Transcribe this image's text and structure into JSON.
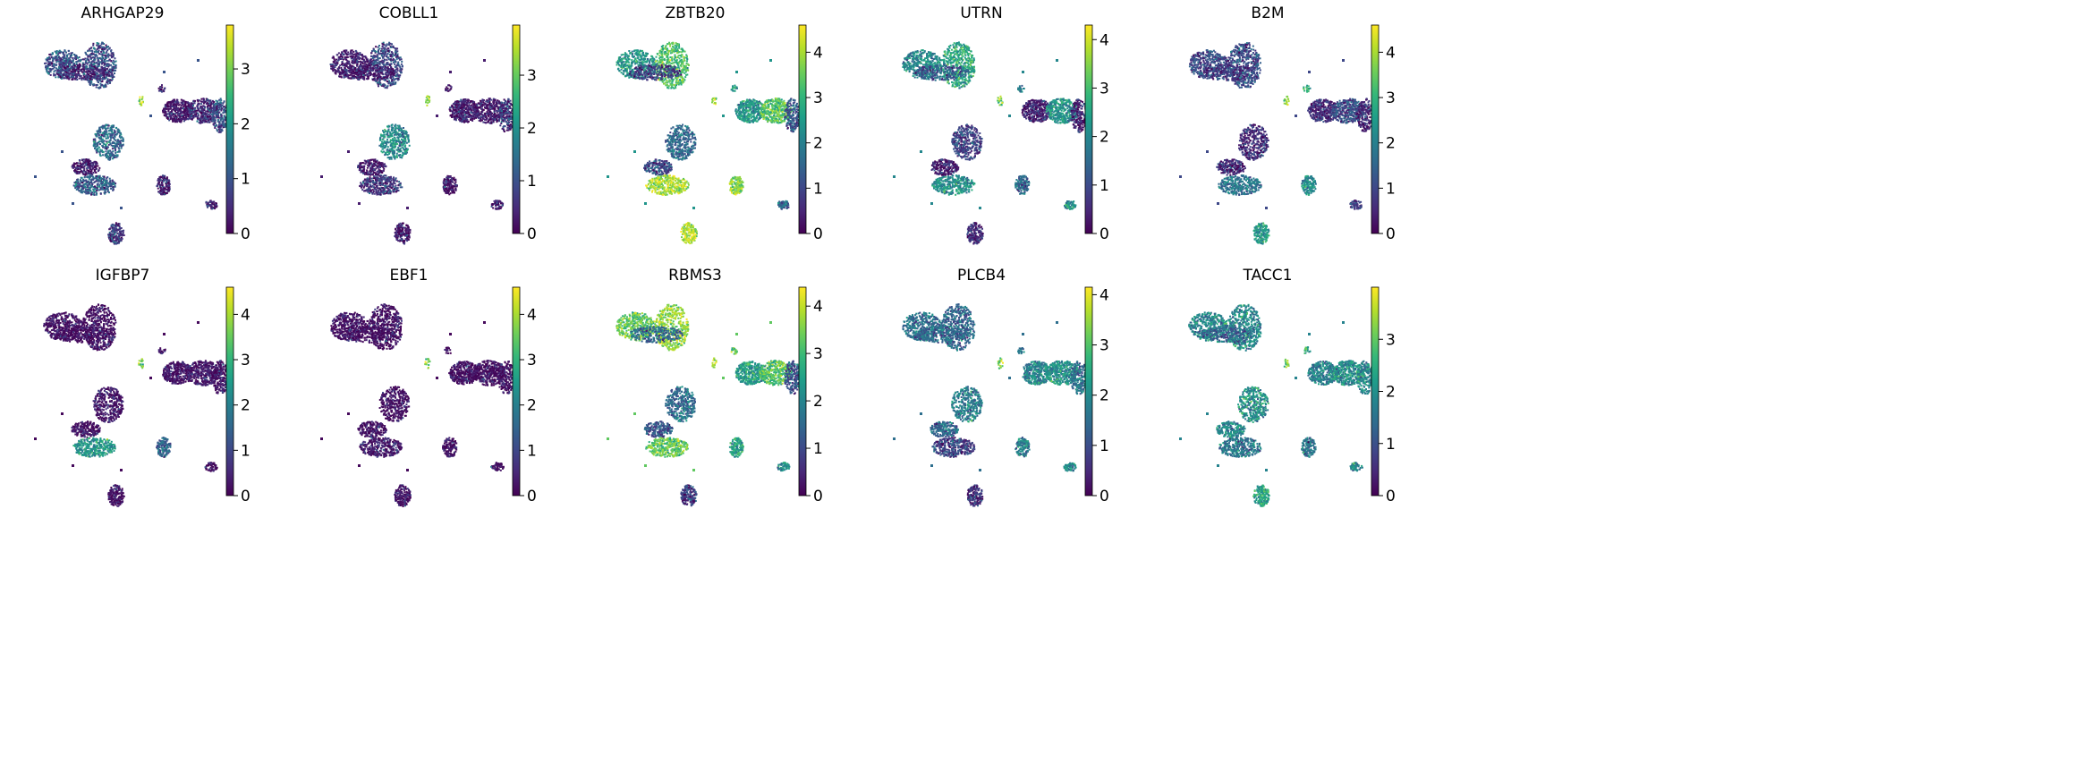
{
  "figure_title": "",
  "colormap": {
    "name": "viridis",
    "stops": [
      "#440154",
      "#482878",
      "#3e4989",
      "#31688e",
      "#26828e",
      "#1f9e89",
      "#35b779",
      "#6ece58",
      "#b5de2b",
      "#fde725"
    ]
  },
  "chart_data": [
    {
      "type": "scatter",
      "title": "ARHGAP29",
      "vmin": 0,
      "vmax": 3.8,
      "colorbar_ticks": [
        0,
        1,
        2,
        3
      ],
      "cluster_levels": [
        1.0,
        0.9,
        0.4,
        0.3,
        3.3,
        0.2,
        0.5,
        0.9,
        1.3,
        0.2,
        1.1,
        0.3,
        0.6,
        0.3
      ]
    },
    {
      "type": "scatter",
      "title": "COBLL1",
      "vmin": 0,
      "vmax": 3.95,
      "colorbar_ticks": [
        0,
        1,
        2,
        3
      ],
      "cluster_levels": [
        0.3,
        0.8,
        0.3,
        0.1,
        3.4,
        0.3,
        0.3,
        0.7,
        1.9,
        0.2,
        0.6,
        0.1,
        0.3,
        0.2
      ]
    },
    {
      "type": "scatter",
      "title": "ZBTB20",
      "vmin": 0,
      "vmax": 4.6,
      "colorbar_ticks": [
        0,
        1,
        2,
        3,
        4
      ],
      "cluster_levels": [
        2.4,
        3.3,
        0.9,
        2.6,
        3.9,
        2.4,
        3.3,
        1.2,
        1.6,
        1.0,
        4.0,
        3.8,
        4.1,
        1.5
      ]
    },
    {
      "type": "scatter",
      "title": "UTRN",
      "vmin": 0,
      "vmax": 4.3,
      "colorbar_ticks": [
        0,
        1,
        2,
        3,
        4
      ],
      "cluster_levels": [
        2.0,
        2.6,
        1.2,
        1.8,
        3.6,
        0.4,
        2.2,
        0.4,
        0.8,
        0.3,
        2.1,
        1.4,
        0.5,
        2.2
      ]
    },
    {
      "type": "scatter",
      "title": "B2M",
      "vmin": 0,
      "vmax": 4.6,
      "colorbar_ticks": [
        0,
        1,
        2,
        3,
        4
      ],
      "cluster_levels": [
        1.0,
        1.1,
        0.8,
        2.9,
        3.8,
        0.6,
        1.1,
        0.5,
        0.6,
        0.5,
        1.8,
        2.2,
        2.5,
        0.8
      ]
    },
    {
      "type": "scatter",
      "title": "IGFBP7",
      "vmin": 0,
      "vmax": 4.6,
      "colorbar_ticks": [
        0,
        1,
        2,
        3,
        4
      ],
      "cluster_levels": [
        0.1,
        0.1,
        0.1,
        0.2,
        3.6,
        0.1,
        0.2,
        0.1,
        0.2,
        0.1,
        2.4,
        1.5,
        0.1,
        0.1
      ]
    },
    {
      "type": "scatter",
      "title": "EBF1",
      "vmin": 0,
      "vmax": 4.6,
      "colorbar_ticks": [
        0,
        1,
        2,
        3,
        4
      ],
      "cluster_levels": [
        0.1,
        0.1,
        0.1,
        0.1,
        3.8,
        0.1,
        0.1,
        0.1,
        0.1,
        0.1,
        0.3,
        0.1,
        0.1,
        0.1
      ]
    },
    {
      "type": "scatter",
      "title": "RBMS3",
      "vmin": 0,
      "vmax": 4.4,
      "colorbar_ticks": [
        0,
        1,
        2,
        3,
        4
      ],
      "cluster_levels": [
        3.3,
        3.7,
        1.5,
        3.0,
        3.9,
        2.4,
        3.1,
        1.2,
        1.5,
        1.2,
        3.3,
        2.5,
        0.8,
        2.2
      ]
    },
    {
      "type": "scatter",
      "title": "PLCB4",
      "vmin": 0,
      "vmax": 4.15,
      "colorbar_ticks": [
        0,
        1,
        2,
        3,
        4
      ],
      "cluster_levels": [
        1.5,
        1.4,
        1.4,
        1.6,
        3.5,
        1.9,
        2.1,
        1.5,
        1.7,
        1.3,
        0.8,
        1.8,
        0.6,
        2.0
      ]
    },
    {
      "type": "scatter",
      "title": "TACC1",
      "vmin": 0,
      "vmax": 4.0,
      "colorbar_ticks": [
        0,
        1,
        2,
        3
      ],
      "cluster_levels": [
        1.8,
        1.9,
        1.4,
        2.4,
        3.3,
        1.8,
        2.0,
        1.8,
        2.0,
        1.8,
        1.6,
        1.5,
        2.3,
        1.7
      ]
    }
  ]
}
